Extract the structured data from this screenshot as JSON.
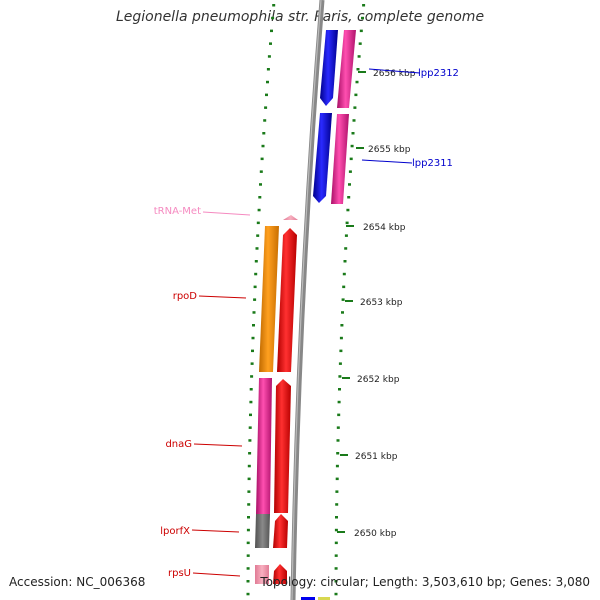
{
  "title": "Legionella pneumophila str. Paris, complete genome",
  "footer": {
    "accession": "Accession: NC_006368",
    "topology": "Topology: circular; Length: 3,503,610 bp; Genes: 3,080"
  },
  "scale_labels": [
    "2656 kbp",
    "2655 kbp",
    "2654 kbp",
    "2653 kbp",
    "2652 kbp",
    "2651 kbp",
    "2650 kbp"
  ],
  "gene_labels": {
    "lpp2312": "lpp2312",
    "lpp2311": "lpp2311",
    "trna_met": "tRNA-Met",
    "rpod": "rpoD",
    "dnag": "dnaG",
    "lporfx": "lporfX",
    "rpsu": "rpsU"
  },
  "colors": {
    "blue_gene": "#0000ee",
    "magenta_gene": "#e8158f",
    "red_gene": "#ee0000",
    "orange_gene": "#f08a00",
    "gray_gene": "#707070",
    "trna_gene": "#f58ac0",
    "tick_green": "#1a7a1a",
    "backbone": "#888888"
  }
}
